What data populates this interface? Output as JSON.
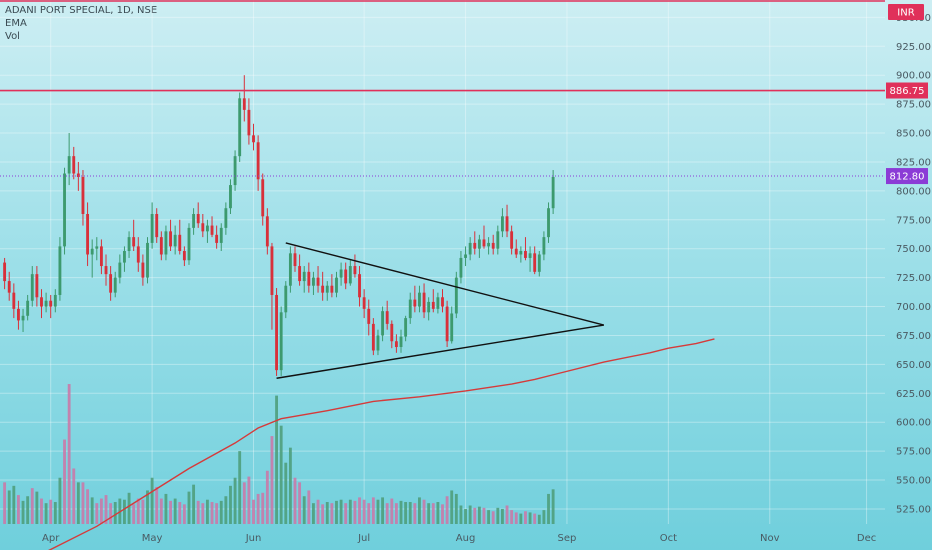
{
  "legend": {
    "symbol_line": "ADANI PORT SPECIAL, 1D, NSE",
    "ema_label": "EMA",
    "vol_label": "Vol"
  },
  "currency": "INR",
  "colors": {
    "up": "#3d9a6e",
    "down": "#d8303a",
    "vol_up": "#4f9f7c",
    "vol_down": "#c97aa8",
    "resistance": "#e0305a",
    "ema": "#d63a3a",
    "triangle": "#111111",
    "current": "#8b3bd6"
  },
  "chart_data": {
    "type": "candlestick",
    "title": "ADANI PORT SPECIAL, 1D, NSE",
    "ylim": [
      512,
      965
    ],
    "y_ticks": [
      525,
      550,
      575,
      600,
      625,
      650,
      675,
      700,
      725,
      750,
      775,
      800,
      825,
      850,
      875,
      900,
      925,
      950
    ],
    "y_tick_labels": [
      "525.00",
      "550.00",
      "575.00",
      "600.00",
      "625.00",
      "650.00",
      "675.00",
      "700.00",
      "725.00",
      "750.00",
      "775.00",
      "800.00",
      "825.00",
      "850.00",
      "875.00",
      "900.00",
      "925.00",
      "950.00"
    ],
    "x_ticks": [
      {
        "label": "Apr",
        "index": 10
      },
      {
        "label": "May",
        "index": 32
      },
      {
        "label": "Jun",
        "index": 54
      },
      {
        "label": "Jul",
        "index": 78
      },
      {
        "label": "Aug",
        "index": 100
      },
      {
        "label": "Sep",
        "index": 122
      },
      {
        "label": "Oct",
        "index": 144
      },
      {
        "label": "Nov",
        "index": 166
      },
      {
        "label": "Dec",
        "index": 187
      }
    ],
    "index_range": [
      -1,
      191
    ],
    "horizontal_levels": [
      {
        "label": "",
        "value": 966,
        "role": "upper-resistance"
      },
      {
        "label": "886.75",
        "value": 886.75,
        "role": "resistance"
      },
      {
        "label": "812.80",
        "value": 812.8,
        "role": "current-price"
      }
    ],
    "candles": [
      [
        738,
        742,
        715,
        722
      ],
      [
        722,
        730,
        705,
        712
      ],
      [
        712,
        720,
        690,
        698
      ],
      [
        698,
        705,
        680,
        688
      ],
      [
        688,
        698,
        678,
        692
      ],
      [
        692,
        710,
        688,
        705
      ],
      [
        705,
        735,
        700,
        728
      ],
      [
        728,
        735,
        700,
        708
      ],
      [
        708,
        715,
        690,
        700
      ],
      [
        700,
        712,
        695,
        705
      ],
      [
        705,
        710,
        690,
        700
      ],
      [
        700,
        715,
        695,
        710
      ],
      [
        710,
        760,
        705,
        752
      ],
      [
        752,
        820,
        745,
        815
      ],
      [
        815,
        850,
        805,
        830
      ],
      [
        830,
        838,
        810,
        815
      ],
      [
        815,
        825,
        800,
        812
      ],
      [
        812,
        818,
        770,
        780
      ],
      [
        780,
        790,
        735,
        745
      ],
      [
        745,
        758,
        725,
        750
      ],
      [
        750,
        760,
        740,
        752
      ],
      [
        752,
        758,
        728,
        735
      ],
      [
        735,
        745,
        718,
        728
      ],
      [
        728,
        735,
        705,
        712
      ],
      [
        712,
        730,
        708,
        725
      ],
      [
        725,
        745,
        720,
        738
      ],
      [
        738,
        752,
        730,
        748
      ],
      [
        748,
        765,
        742,
        760
      ],
      [
        760,
        775,
        748,
        752
      ],
      [
        752,
        760,
        730,
        738
      ],
      [
        738,
        745,
        718,
        725
      ],
      [
        725,
        760,
        720,
        755
      ],
      [
        755,
        790,
        750,
        780
      ],
      [
        780,
        785,
        755,
        760
      ],
      [
        760,
        765,
        740,
        745
      ],
      [
        745,
        770,
        740,
        765
      ],
      [
        765,
        775,
        748,
        752
      ],
      [
        752,
        770,
        745,
        762
      ],
      [
        762,
        775,
        745,
        748
      ],
      [
        748,
        752,
        735,
        740
      ],
      [
        740,
        772,
        736,
        768
      ],
      [
        768,
        785,
        762,
        780
      ],
      [
        780,
        790,
        768,
        772
      ],
      [
        772,
        780,
        760,
        765
      ],
      [
        765,
        775,
        755,
        770
      ],
      [
        770,
        778,
        760,
        762
      ],
      [
        762,
        770,
        750,
        755
      ],
      [
        755,
        772,
        748,
        768
      ],
      [
        768,
        790,
        762,
        785
      ],
      [
        785,
        810,
        780,
        805
      ],
      [
        805,
        835,
        800,
        830
      ],
      [
        830,
        885,
        825,
        880
      ],
      [
        880,
        900,
        860,
        870
      ],
      [
        870,
        880,
        840,
        848
      ],
      [
        848,
        858,
        835,
        842
      ],
      [
        842,
        848,
        800,
        810
      ],
      [
        810,
        815,
        770,
        778
      ],
      [
        778,
        785,
        745,
        752
      ],
      [
        752,
        755,
        680,
        710
      ],
      [
        710,
        716,
        640,
        645
      ],
      [
        645,
        700,
        640,
        695
      ],
      [
        695,
        722,
        690,
        718
      ],
      [
        718,
        752,
        712,
        746
      ],
      [
        746,
        752,
        730,
        735
      ],
      [
        735,
        745,
        718,
        722
      ],
      [
        722,
        735,
        712,
        730
      ],
      [
        730,
        738,
        712,
        718
      ],
      [
        718,
        730,
        710,
        725
      ],
      [
        725,
        735,
        712,
        718
      ],
      [
        718,
        730,
        705,
        712
      ],
      [
        712,
        722,
        705,
        718
      ],
      [
        718,
        728,
        708,
        712
      ],
      [
        712,
        730,
        708,
        725
      ],
      [
        725,
        738,
        718,
        732
      ],
      [
        732,
        738,
        715,
        720
      ],
      [
        720,
        740,
        718,
        735
      ],
      [
        735,
        745,
        725,
        728
      ],
      [
        728,
        735,
        700,
        708
      ],
      [
        708,
        715,
        690,
        698
      ],
      [
        698,
        706,
        675,
        685
      ],
      [
        685,
        690,
        658,
        662
      ],
      [
        662,
        680,
        658,
        675
      ],
      [
        675,
        700,
        670,
        696
      ],
      [
        696,
        705,
        680,
        685
      ],
      [
        685,
        688,
        664,
        670
      ],
      [
        670,
        676,
        660,
        665
      ],
      [
        665,
        680,
        660,
        674
      ],
      [
        674,
        692,
        670,
        690
      ],
      [
        690,
        712,
        685,
        706
      ],
      [
        706,
        718,
        695,
        700
      ],
      [
        700,
        718,
        695,
        712
      ],
      [
        712,
        720,
        690,
        695
      ],
      [
        695,
        708,
        688,
        704
      ],
      [
        704,
        715,
        695,
        698
      ],
      [
        698,
        712,
        694,
        708
      ],
      [
        708,
        715,
        695,
        700
      ],
      [
        700,
        705,
        665,
        670
      ],
      [
        670,
        700,
        668,
        694
      ],
      [
        694,
        730,
        690,
        725
      ],
      [
        725,
        748,
        720,
        742
      ],
      [
        742,
        752,
        735,
        745
      ],
      [
        745,
        760,
        740,
        755
      ],
      [
        755,
        765,
        745,
        750
      ],
      [
        750,
        762,
        742,
        758
      ],
      [
        758,
        770,
        750,
        752
      ],
      [
        752,
        760,
        745,
        755
      ],
      [
        755,
        762,
        745,
        750
      ],
      [
        750,
        770,
        745,
        765
      ],
      [
        765,
        785,
        760,
        778
      ],
      [
        778,
        788,
        760,
        765
      ],
      [
        765,
        770,
        745,
        750
      ],
      [
        750,
        758,
        742,
        745
      ],
      [
        745,
        752,
        738,
        748
      ],
      [
        748,
        760,
        740,
        742
      ],
      [
        742,
        752,
        730,
        746
      ],
      [
        746,
        752,
        728,
        730
      ],
      [
        730,
        748,
        726,
        745
      ],
      [
        745,
        765,
        740,
        760
      ],
      [
        760,
        790,
        755,
        785
      ],
      [
        785,
        818,
        780,
        812
      ]
    ],
    "volumes": [
      [
        548,
        0
      ],
      [
        541,
        1
      ],
      [
        545,
        1
      ],
      [
        537,
        0
      ],
      [
        532,
        1
      ],
      [
        536,
        1
      ],
      [
        543,
        0
      ],
      [
        540,
        1
      ],
      [
        534,
        0
      ],
      [
        530,
        1
      ],
      [
        533,
        0
      ],
      [
        531,
        1
      ],
      [
        552,
        1
      ],
      [
        585,
        0
      ],
      [
        633,
        0
      ],
      [
        560,
        0
      ],
      [
        548,
        1
      ],
      [
        548,
        0
      ],
      [
        542,
        0
      ],
      [
        535,
        1
      ],
      [
        530,
        0
      ],
      [
        534,
        0
      ],
      [
        537,
        0
      ],
      [
        530,
        0
      ],
      [
        531,
        1
      ],
      [
        534,
        1
      ],
      [
        533,
        1
      ],
      [
        539,
        1
      ],
      [
        529,
        0
      ],
      [
        534,
        0
      ],
      [
        533,
        0
      ],
      [
        541,
        1
      ],
      [
        552,
        1
      ],
      [
        544,
        0
      ],
      [
        534,
        0
      ],
      [
        538,
        1
      ],
      [
        532,
        0
      ],
      [
        534,
        1
      ],
      [
        531,
        0
      ],
      [
        529,
        0
      ],
      [
        540,
        1
      ],
      [
        546,
        1
      ],
      [
        532,
        0
      ],
      [
        530,
        0
      ],
      [
        533,
        1
      ],
      [
        531,
        0
      ],
      [
        530,
        0
      ],
      [
        532,
        1
      ],
      [
        536,
        1
      ],
      [
        545,
        1
      ],
      [
        552,
        1
      ],
      [
        575,
        1
      ],
      [
        548,
        0
      ],
      [
        553,
        0
      ],
      [
        533,
        0
      ],
      [
        538,
        0
      ],
      [
        539,
        0
      ],
      [
        558,
        0
      ],
      [
        588,
        0
      ],
      [
        623,
        1
      ],
      [
        597,
        1
      ],
      [
        565,
        1
      ],
      [
        578,
        1
      ],
      [
        552,
        0
      ],
      [
        548,
        0
      ],
      [
        536,
        1
      ],
      [
        541,
        0
      ],
      [
        530,
        1
      ],
      [
        533,
        0
      ],
      [
        529,
        0
      ],
      [
        531,
        1
      ],
      [
        530,
        0
      ],
      [
        532,
        1
      ],
      [
        533,
        1
      ],
      [
        530,
        0
      ],
      [
        533,
        1
      ],
      [
        532,
        0
      ],
      [
        535,
        0
      ],
      [
        533,
        0
      ],
      [
        530,
        0
      ],
      [
        535,
        0
      ],
      [
        533,
        1
      ],
      [
        535,
        1
      ],
      [
        530,
        0
      ],
      [
        534,
        0
      ],
      [
        530,
        0
      ],
      [
        532,
        1
      ],
      [
        531,
        1
      ],
      [
        531,
        1
      ],
      [
        530,
        0
      ],
      [
        535,
        1
      ],
      [
        533,
        0
      ],
      [
        530,
        1
      ],
      [
        530,
        0
      ],
      [
        531,
        1
      ],
      [
        529,
        0
      ],
      [
        536,
        0
      ],
      [
        541,
        1
      ],
      [
        538,
        1
      ],
      [
        528,
        1
      ],
      [
        525,
        1
      ],
      [
        528,
        1
      ],
      [
        526,
        0
      ],
      [
        527,
        1
      ],
      [
        526,
        0
      ],
      [
        524,
        1
      ],
      [
        523,
        0
      ],
      [
        526,
        1
      ],
      [
        525,
        1
      ],
      [
        528,
        0
      ],
      [
        524,
        0
      ],
      [
        522,
        0
      ],
      [
        521,
        1
      ],
      [
        523,
        0
      ],
      [
        522,
        1
      ],
      [
        521,
        0
      ],
      [
        520,
        1
      ],
      [
        524,
        1
      ],
      [
        538,
        1
      ],
      [
        542,
        1
      ]
    ],
    "ema": [
      [
        0,
        470
      ],
      [
        20,
        510
      ],
      [
        40,
        560
      ],
      [
        50,
        582
      ],
      [
        55,
        595
      ],
      [
        60,
        603
      ],
      [
        70,
        610
      ],
      [
        80,
        618
      ],
      [
        90,
        622
      ],
      [
        100,
        627
      ],
      [
        110,
        633
      ],
      [
        115,
        637
      ],
      [
        120,
        642
      ],
      [
        130,
        652
      ],
      [
        140,
        660
      ],
      [
        144,
        664
      ],
      [
        150,
        668
      ],
      [
        154,
        672
      ]
    ],
    "triangle": {
      "upper": [
        [
          61,
          755
        ],
        [
          130,
          684
        ]
      ],
      "lower": [
        [
          59,
          638
        ],
        [
          130,
          684
        ]
      ]
    }
  }
}
